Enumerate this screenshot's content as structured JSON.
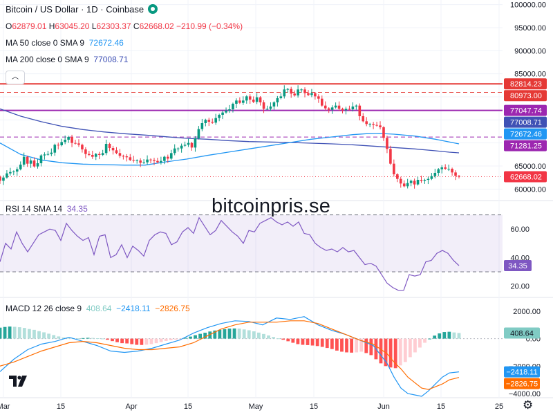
{
  "header": {
    "symbol": "Bitcoin / US Dollar · 1D · Coinbase",
    "ohlc": {
      "o_label": "O",
      "o": "62879.01",
      "h_label": "H",
      "h": "63045.20",
      "l_label": "L",
      "l": "62303.37",
      "c_label": "C",
      "c": "62668.02",
      "change": "−210.99 (−0.34%)"
    },
    "ma50": {
      "label": "MA 50 close 0 SMA 9",
      "value": "72672.46"
    },
    "ma200": {
      "label": "MA 200 close 0 SMA 9",
      "value": "77008.71"
    },
    "collapse_icon": "chevron-up-icon"
  },
  "watermark": "bitcoinpris.se",
  "rsi_legend": {
    "label": "RSI 14 SMA 14",
    "value": "34.35"
  },
  "macd_legend": {
    "label": "MACD 12 26 close 9",
    "hist": "408.64",
    "macd": "−2418.11",
    "signal": "−2826.75"
  },
  "colors": {
    "up": "#089981",
    "down": "#f23645",
    "ma50": "#2196f3",
    "ma200": "#3f51b5",
    "hline_red": "#e53935",
    "hline_purple": "#9c27b0",
    "rsi": "#7e57c2",
    "macd": "#2196f3",
    "signal": "#ff6d00"
  },
  "chart_data": [
    {
      "type": "candlestick",
      "name": "Bitcoin / US Dollar",
      "y_axis_ticks": [
        "100000.00",
        "95000.00",
        "90000.00",
        "85000.00",
        "80000.00",
        "75000.00",
        "70000.00",
        "65000.00",
        "60000.00"
      ],
      "x_axis_ticks": [
        "Mar",
        "15",
        "Apr",
        "15",
        "May",
        "15",
        "Jun",
        "15",
        "25"
      ],
      "ylim": [
        57500,
        101000
      ],
      "start": 62700,
      "closes": [
        61800,
        62500,
        63400,
        63700,
        63800,
        64300,
        65300,
        67000,
        65500,
        66200,
        64900,
        65600,
        67300,
        67500,
        67600,
        67900,
        69600,
        69500,
        70200,
        70700,
        71300,
        70000,
        69900,
        69600,
        68600,
        67600,
        67400,
        67000,
        67600,
        67400,
        67800,
        69800,
        68900,
        68400,
        67800,
        67200,
        67100,
        66900,
        66300,
        66200,
        66200,
        65700,
        65800,
        66400,
        66300,
        66100,
        65800,
        66100,
        67000,
        66600,
        67800,
        68800,
        68800,
        69400,
        69600,
        70000,
        69000,
        71000,
        73000,
        74300,
        75000,
        74600,
        74400,
        75400,
        76100,
        76600,
        77000,
        77300,
        78500,
        79200,
        78700,
        79200,
        80100,
        79400,
        78900,
        79900,
        78800,
        77400,
        77400,
        77900,
        78800,
        79700,
        80100,
        81600,
        81700,
        80700,
        80300,
        81600,
        81600,
        80800,
        80400,
        80800,
        80100,
        79600,
        78100,
        77500,
        77200,
        77700,
        78100,
        77400,
        77100,
        77400,
        77300,
        77900,
        78100,
        75800,
        74700,
        74100,
        74100,
        73900,
        73800,
        73400,
        71100,
        68700,
        65500,
        63200,
        62200,
        61200,
        60600,
        61300,
        61800,
        61000,
        62000,
        61800,
        62000,
        62200,
        62800,
        63500,
        64300,
        64700,
        64400,
        64400,
        63600,
        62879.01,
        62668.02
      ],
      "last_candle": {
        "open": 62879.01,
        "high": 63045.2,
        "low": 62303.37,
        "close": 62668.02
      },
      "horizontal_lines": [
        {
          "value": 82814.23,
          "color": "#e53935",
          "style": "solid"
        },
        {
          "value": 80973.0,
          "color": "#e53935",
          "style": "dashed"
        },
        {
          "value": 77047.74,
          "color": "#9c27b0",
          "style": "solid"
        },
        {
          "value": 71281.25,
          "color": "#9c27b0",
          "style": "dashed"
        },
        {
          "value": 62668.02,
          "color": "#f23645",
          "style": "dotted"
        }
      ],
      "price_labels": [
        {
          "text": "82814.23",
          "value": 82814.23,
          "bg": "#e53935"
        },
        {
          "text": "80973.00",
          "value": 80973.0,
          "bg": "#e53935"
        },
        {
          "text": "77047.74",
          "value": 77047.74,
          "bg": "#9c27b0"
        },
        {
          "text": "77008.71",
          "value": 77008.71,
          "bg": "#3f51b5"
        },
        {
          "text": "72672.46",
          "value": 72672.46,
          "bg": "#2196f3"
        },
        {
          "text": "71281.25",
          "value": 71281.25,
          "bg": "#9c27b0"
        },
        {
          "text": "62668.02",
          "value": 62668.02,
          "bg": "#f23645"
        }
      ],
      "ma200_line": [
        [
          0,
          77400
        ],
        [
          30,
          75800
        ],
        [
          60,
          74600
        ],
        [
          90,
          73600
        ],
        [
          120,
          72900
        ],
        [
          150,
          72400
        ],
        [
          180,
          72000
        ],
        [
          210,
          71700
        ],
        [
          240,
          71350
        ],
        [
          270,
          71000
        ],
        [
          300,
          70800
        ],
        [
          330,
          70500
        ],
        [
          360,
          70300
        ],
        [
          390,
          70200
        ],
        [
          420,
          70100
        ],
        [
          450,
          69950
        ],
        [
          480,
          69800
        ],
        [
          510,
          69600
        ],
        [
          540,
          69300
        ],
        [
          570,
          69000
        ],
        [
          600,
          68700
        ],
        [
          630,
          68300
        ],
        [
          650,
          68000
        ],
        [
          664,
          67850
        ]
      ],
      "ma50_line": [
        [
          0,
          70000
        ],
        [
          30,
          67500
        ],
        [
          60,
          66300
        ],
        [
          90,
          65700
        ],
        [
          120,
          65400
        ],
        [
          150,
          65300
        ],
        [
          180,
          65200
        ],
        [
          210,
          65200
        ],
        [
          240,
          65900
        ],
        [
          270,
          66500
        ],
        [
          300,
          67300
        ],
        [
          330,
          68000
        ],
        [
          360,
          68700
        ],
        [
          390,
          69400
        ],
        [
          420,
          70100
        ],
        [
          450,
          70800
        ],
        [
          480,
          71300
        ],
        [
          510,
          71800
        ],
        [
          530,
          72000
        ],
        [
          550,
          72050
        ],
        [
          570,
          71900
        ],
        [
          600,
          71500
        ],
        [
          630,
          70800
        ],
        [
          664,
          69800
        ]
      ]
    },
    {
      "type": "line",
      "name": "RSI",
      "y_axis_ticks": [
        "60.00",
        "40.00",
        "20.00"
      ],
      "ylim": [
        12,
        80
      ],
      "levels": [
        70,
        30
      ],
      "last_value": 34.35,
      "values": [
        [
          0,
          37
        ],
        [
          8,
          50
        ],
        [
          16,
          46
        ],
        [
          24,
          58
        ],
        [
          32,
          50
        ],
        [
          40,
          44
        ],
        [
          48,
          50
        ],
        [
          56,
          56
        ],
        [
          64,
          58
        ],
        [
          72,
          60
        ],
        [
          80,
          59
        ],
        [
          88,
          52
        ],
        [
          96,
          64
        ],
        [
          104,
          59
        ],
        [
          112,
          55
        ],
        [
          120,
          52
        ],
        [
          128,
          54
        ],
        [
          136,
          42
        ],
        [
          144,
          55
        ],
        [
          152,
          56
        ],
        [
          160,
          40
        ],
        [
          168,
          42
        ],
        [
          176,
          49
        ],
        [
          184,
          40
        ],
        [
          192,
          48
        ],
        [
          200,
          45
        ],
        [
          208,
          41
        ],
        [
          216,
          52
        ],
        [
          224,
          56
        ],
        [
          232,
          58
        ],
        [
          240,
          57
        ],
        [
          248,
          49
        ],
        [
          256,
          51
        ],
        [
          264,
          58
        ],
        [
          272,
          61
        ],
        [
          280,
          57
        ],
        [
          288,
          68
        ],
        [
          296,
          62
        ],
        [
          304,
          56
        ],
        [
          312,
          59
        ],
        [
          320,
          66
        ],
        [
          328,
          62
        ],
        [
          336,
          58
        ],
        [
          344,
          55
        ],
        [
          352,
          50
        ],
        [
          360,
          59
        ],
        [
          368,
          58
        ],
        [
          376,
          64
        ],
        [
          384,
          66
        ],
        [
          392,
          68
        ],
        [
          400,
          65
        ],
        [
          408,
          63
        ],
        [
          416,
          65
        ],
        [
          424,
          62
        ],
        [
          432,
          65
        ],
        [
          440,
          57
        ],
        [
          448,
          56
        ],
        [
          456,
          50
        ],
        [
          464,
          47
        ],
        [
          472,
          45
        ],
        [
          480,
          46
        ],
        [
          488,
          44
        ],
        [
          496,
          47
        ],
        [
          504,
          44
        ],
        [
          512,
          45
        ],
        [
          520,
          40
        ],
        [
          528,
          35
        ],
        [
          536,
          36
        ],
        [
          544,
          34
        ],
        [
          552,
          28
        ],
        [
          560,
          22
        ],
        [
          568,
          19
        ],
        [
          576,
          17
        ],
        [
          584,
          17
        ],
        [
          592,
          28
        ],
        [
          600,
          27
        ],
        [
          608,
          28
        ],
        [
          616,
          37
        ],
        [
          624,
          38
        ],
        [
          632,
          43
        ],
        [
          640,
          45
        ],
        [
          648,
          43
        ],
        [
          656,
          38
        ],
        [
          664,
          34.35
        ]
      ]
    },
    {
      "type": "bar+line",
      "name": "MACD",
      "y_axis_ticks": [
        "2000.00",
        "0.00",
        "−2000.00",
        "−4000.00"
      ],
      "ylim": [
        -4300,
        3000
      ],
      "histogram": [
        800,
        850,
        880,
        860,
        830,
        780,
        700,
        640,
        540,
        460,
        360,
        260,
        160,
        80,
        60,
        30,
        20,
        40,
        60,
        50,
        30,
        10,
        -80,
        -180,
        -260,
        -330,
        -350,
        -400,
        -450,
        -460,
        -440,
        -400,
        -330,
        -250,
        -170,
        -120,
        -70,
        -30,
        60,
        150,
        250,
        350,
        430,
        520,
        590,
        640,
        690,
        730,
        740,
        730,
        670,
        610,
        530,
        440,
        340,
        230,
        120,
        20,
        -80,
        -190,
        -300,
        -400,
        -450,
        -470,
        -500,
        -540,
        -600,
        -680,
        -760,
        -870,
        -950,
        -1000,
        -1020,
        -1000,
        -950,
        -1050,
        -1200,
        -1500,
        -1800,
        -2000,
        -2100,
        -2150,
        -1950,
        -1700,
        -1350,
        -1000,
        -650,
        -300,
        0,
        220,
        380,
        480,
        500,
        450,
        408.64
      ],
      "macd_line": [
        [
          0,
          -2400
        ],
        [
          20,
          -1500
        ],
        [
          40,
          -800
        ],
        [
          60,
          -400
        ],
        [
          80,
          -200
        ],
        [
          100,
          100
        ],
        [
          120,
          -200
        ],
        [
          140,
          -500
        ],
        [
          160,
          -900
        ],
        [
          180,
          -1000
        ],
        [
          200,
          -900
        ],
        [
          220,
          -700
        ],
        [
          240,
          -400
        ],
        [
          260,
          -100
        ],
        [
          280,
          400
        ],
        [
          300,
          800
        ],
        [
          320,
          1100
        ],
        [
          340,
          1300
        ],
        [
          360,
          1250
        ],
        [
          380,
          1000
        ],
        [
          400,
          1500
        ],
        [
          420,
          1400
        ],
        [
          440,
          1600
        ],
        [
          460,
          1000
        ],
        [
          480,
          600
        ],
        [
          500,
          300
        ],
        [
          520,
          -100
        ],
        [
          540,
          -500
        ],
        [
          560,
          -1800
        ],
        [
          570,
          -2800
        ],
        [
          580,
          -3600
        ],
        [
          590,
          -4000
        ],
        [
          600,
          -4100
        ],
        [
          610,
          -4200
        ],
        [
          620,
          -3800
        ],
        [
          630,
          -3300
        ],
        [
          640,
          -2800
        ],
        [
          650,
          -2500
        ],
        [
          664,
          -2418.11
        ]
      ],
      "signal_line": [
        [
          0,
          -2000
        ],
        [
          20,
          -1700
        ],
        [
          40,
          -1300
        ],
        [
          60,
          -900
        ],
        [
          80,
          -600
        ],
        [
          100,
          -300
        ],
        [
          120,
          -200
        ],
        [
          140,
          -300
        ],
        [
          160,
          -500
        ],
        [
          180,
          -700
        ],
        [
          200,
          -800
        ],
        [
          220,
          -800
        ],
        [
          240,
          -700
        ],
        [
          260,
          -600
        ],
        [
          280,
          -300
        ],
        [
          300,
          200
        ],
        [
          320,
          700
        ],
        [
          340,
          1000
        ],
        [
          360,
          1200
        ],
        [
          380,
          1200
        ],
        [
          400,
          1200
        ],
        [
          420,
          1300
        ],
        [
          440,
          1300
        ],
        [
          460,
          1100
        ],
        [
          480,
          700
        ],
        [
          500,
          300
        ],
        [
          520,
          -100
        ],
        [
          540,
          -400
        ],
        [
          560,
          -1100
        ],
        [
          570,
          -1700
        ],
        [
          580,
          -2200
        ],
        [
          590,
          -2800
        ],
        [
          600,
          -3200
        ],
        [
          610,
          -3600
        ],
        [
          620,
          -3700
        ],
        [
          630,
          -3500
        ],
        [
          640,
          -3300
        ],
        [
          650,
          -3000
        ],
        [
          664,
          -2826.75
        ]
      ]
    }
  ]
}
